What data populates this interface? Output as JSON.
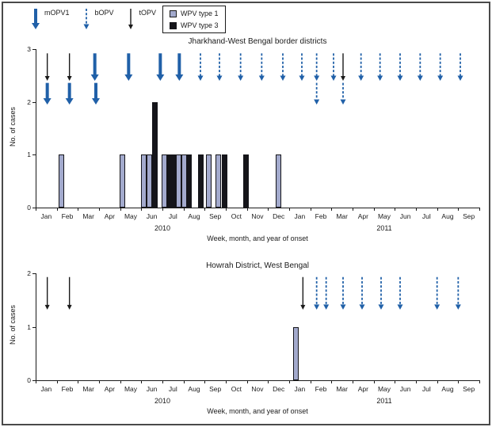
{
  "figure": {
    "legend_vaccines": [
      {
        "label": "mOPV1",
        "arrow": "mOPV1"
      },
      {
        "label": "bOPV",
        "arrow": "bOPV"
      },
      {
        "label": "tOPV",
        "arrow": "tOPV"
      }
    ],
    "legend_types": [
      {
        "label": "WPV type 1",
        "swatch": "wpv1"
      },
      {
        "label": "WPV type 3",
        "swatch": "wpv3"
      }
    ],
    "colors": {
      "arrow_blue": "#2060a8",
      "arrow_black": "#1a1a1a",
      "wpv1_fill": "#a3aacd",
      "wpv3_fill": "#15151a"
    }
  },
  "chart_data": [
    {
      "type": "bar",
      "title": "Jharkhand-West Bengal border districts",
      "ylabel": "No. of cases",
      "xlabel": "Week, month, and year of onset",
      "ylim": [
        0,
        3
      ],
      "yticks": [
        0,
        1,
        2,
        3
      ],
      "x_months": [
        "Jan",
        "Feb",
        "Mar",
        "Apr",
        "May",
        "Jun",
        "Jul",
        "Aug",
        "Sep",
        "Oct",
        "Nov",
        "Dec",
        "Jan",
        "Feb",
        "Mar",
        "Apr",
        "May",
        "Jun",
        "Jul",
        "Aug",
        "Sep"
      ],
      "years": [
        {
          "label": "2010",
          "start": 0,
          "end": 12
        },
        {
          "label": "2011",
          "start": 12,
          "end": 21
        }
      ],
      "bars": [
        {
          "pos": 1.2,
          "type": "WPV type 1",
          "cases": 1
        },
        {
          "pos": 4.1,
          "type": "WPV type 1",
          "cases": 1
        },
        {
          "pos": 5.1,
          "type": "WPV type 1",
          "cases": 1
        },
        {
          "pos": 5.38,
          "type": "WPV type 1",
          "cases": 1
        },
        {
          "pos": 5.65,
          "type": "WPV type 3",
          "cases": 2
        },
        {
          "pos": 6.1,
          "type": "WPV type 1",
          "cases": 1
        },
        {
          "pos": 6.32,
          "type": "WPV type 3",
          "cases": 1
        },
        {
          "pos": 6.55,
          "type": "WPV type 3",
          "cases": 1
        },
        {
          "pos": 6.78,
          "type": "WPV type 1",
          "cases": 1
        },
        {
          "pos": 7.02,
          "type": "WPV type 1",
          "cases": 1
        },
        {
          "pos": 7.25,
          "type": "WPV type 3",
          "cases": 1
        },
        {
          "pos": 7.8,
          "type": "WPV type 3",
          "cases": 1
        },
        {
          "pos": 8.2,
          "type": "WPV type 1",
          "cases": 1
        },
        {
          "pos": 8.65,
          "type": "WPV type 1",
          "cases": 1
        },
        {
          "pos": 8.95,
          "type": "WPV type 3",
          "cases": 1
        },
        {
          "pos": 9.95,
          "type": "WPV type 3",
          "cases": 1
        },
        {
          "pos": 11.5,
          "type": "WPV type 1",
          "cases": 1
        }
      ],
      "arrows": [
        {
          "pos": 0.55,
          "vaccine": "tOPV",
          "row": 1
        },
        {
          "pos": 1.6,
          "vaccine": "tOPV",
          "row": 1
        },
        {
          "pos": 2.8,
          "vaccine": "mOPV1",
          "row": 1
        },
        {
          "pos": 4.4,
          "vaccine": "mOPV1",
          "row": 1
        },
        {
          "pos": 5.9,
          "vaccine": "mOPV1",
          "row": 1
        },
        {
          "pos": 6.8,
          "vaccine": "mOPV1",
          "row": 1
        },
        {
          "pos": 7.8,
          "vaccine": "bOPV",
          "row": 1
        },
        {
          "pos": 8.7,
          "vaccine": "bOPV",
          "row": 1
        },
        {
          "pos": 9.7,
          "vaccine": "bOPV",
          "row": 1
        },
        {
          "pos": 10.7,
          "vaccine": "bOPV",
          "row": 1
        },
        {
          "pos": 11.7,
          "vaccine": "bOPV",
          "row": 1
        },
        {
          "pos": 12.6,
          "vaccine": "bOPV",
          "row": 1
        },
        {
          "pos": 13.3,
          "vaccine": "bOPV",
          "row": 1
        },
        {
          "pos": 14.1,
          "vaccine": "bOPV",
          "row": 1
        },
        {
          "pos": 14.55,
          "vaccine": "tOPV",
          "row": 1
        },
        {
          "pos": 15.4,
          "vaccine": "bOPV",
          "row": 1
        },
        {
          "pos": 16.3,
          "vaccine": "bOPV",
          "row": 1
        },
        {
          "pos": 17.25,
          "vaccine": "bOPV",
          "row": 1
        },
        {
          "pos": 18.2,
          "vaccine": "bOPV",
          "row": 1
        },
        {
          "pos": 19.15,
          "vaccine": "bOPV",
          "row": 1
        },
        {
          "pos": 20.1,
          "vaccine": "bOPV",
          "row": 1
        },
        {
          "pos": 0.55,
          "vaccine": "mOPV1",
          "row": 2
        },
        {
          "pos": 1.6,
          "vaccine": "mOPV1",
          "row": 2
        },
        {
          "pos": 2.85,
          "vaccine": "mOPV1",
          "row": 2
        },
        {
          "pos": 13.3,
          "vaccine": "bOPV",
          "row": 2
        },
        {
          "pos": 14.55,
          "vaccine": "bOPV",
          "row": 2
        }
      ]
    },
    {
      "type": "bar",
      "title": "Howrah District, West Bengal",
      "ylabel": "No. of cases",
      "xlabel": "Week, month, and year of onset",
      "ylim": [
        0,
        2
      ],
      "yticks": [
        0,
        1,
        2
      ],
      "x_months": [
        "Jan",
        "Feb",
        "Mar",
        "Apr",
        "May",
        "Jun",
        "Jul",
        "Aug",
        "Sep",
        "Oct",
        "Nov",
        "Dec",
        "Jan",
        "Feb",
        "Mar",
        "Apr",
        "May",
        "Jun",
        "Jul",
        "Aug",
        "Sep"
      ],
      "years": [
        {
          "label": "2010",
          "start": 0,
          "end": 12
        },
        {
          "label": "2011",
          "start": 12,
          "end": 21
        }
      ],
      "bars": [
        {
          "pos": 12.3,
          "type": "WPV type 1",
          "cases": 1
        }
      ],
      "arrows": [
        {
          "pos": 0.55,
          "vaccine": "tOPV",
          "row": 1
        },
        {
          "pos": 1.6,
          "vaccine": "tOPV",
          "row": 1
        },
        {
          "pos": 12.65,
          "vaccine": "tOPV",
          "row": 1
        },
        {
          "pos": 13.3,
          "vaccine": "bOPV",
          "row": 1
        },
        {
          "pos": 13.75,
          "vaccine": "bOPV",
          "row": 1
        },
        {
          "pos": 14.55,
          "vaccine": "bOPV",
          "row": 1
        },
        {
          "pos": 15.45,
          "vaccine": "bOPV",
          "row": 1
        },
        {
          "pos": 16.35,
          "vaccine": "bOPV",
          "row": 1
        },
        {
          "pos": 17.25,
          "vaccine": "bOPV",
          "row": 1
        },
        {
          "pos": 19.0,
          "vaccine": "bOPV",
          "row": 1
        },
        {
          "pos": 20.0,
          "vaccine": "bOPV",
          "row": 1
        }
      ]
    }
  ]
}
